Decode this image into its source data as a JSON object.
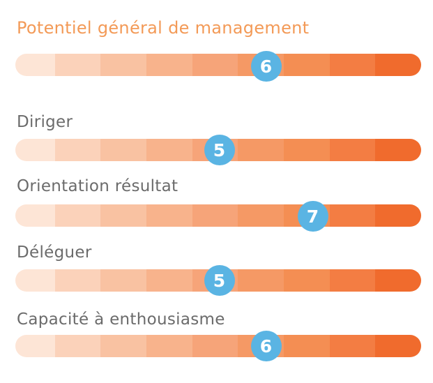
{
  "colors": {
    "accent": "#f39a57",
    "label": "#6b6b6b",
    "marker": "#5ab4e3",
    "segments": [
      "#fde5d6",
      "#fbd2ba",
      "#f9c2a2",
      "#f8b38c",
      "#f6a479",
      "#f59965",
      "#f48e53",
      "#f37d43",
      "#f06b2d"
    ]
  },
  "scale": {
    "min": 1,
    "max": 9
  },
  "scales": [
    {
      "label": "Potentiel général de management",
      "value": 6
    },
    {
      "label": "Diriger",
      "value": 5
    },
    {
      "label": "Orientation résultat",
      "value": 7
    },
    {
      "label": "Déléguer",
      "value": 5
    },
    {
      "label": "Capacité à enthousiasme",
      "value": 6
    }
  ]
}
